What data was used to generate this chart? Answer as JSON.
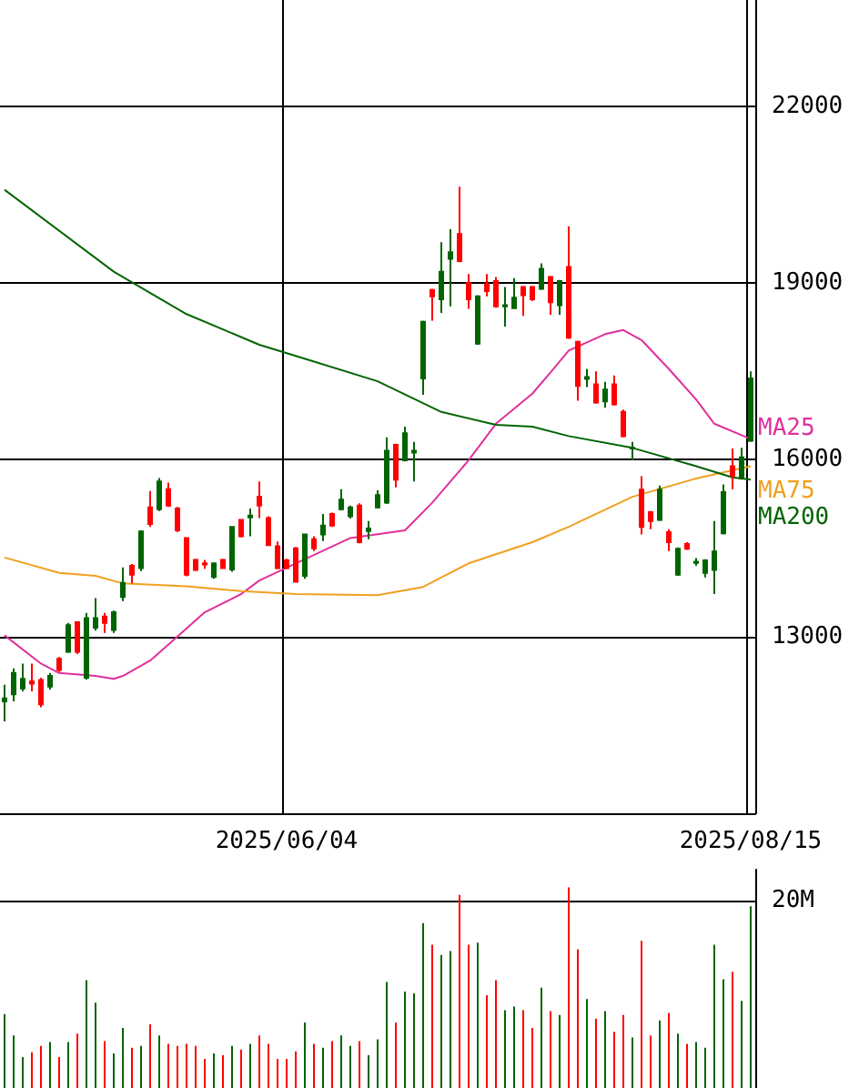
{
  "chart_data": [
    {
      "type": "candlestick",
      "categories": [
        null,
        null,
        null,
        null,
        null,
        null,
        null,
        null,
        null,
        null,
        null,
        null,
        null,
        null,
        null,
        null,
        null,
        null,
        null,
        null,
        null,
        null,
        null,
        null,
        null,
        null,
        null,
        null,
        null,
        null,
        null,
        "2025/06/04",
        null,
        null,
        null,
        null,
        null,
        null,
        null,
        null,
        null,
        null,
        null,
        null,
        null,
        null,
        null,
        null,
        null,
        null,
        null,
        null,
        null,
        null,
        null,
        null,
        null,
        null,
        null,
        null,
        null,
        null,
        null,
        null,
        null,
        null,
        null,
        null,
        null,
        null,
        null,
        null,
        null,
        null,
        null,
        null,
        null,
        null,
        null,
        null,
        null,
        null,
        "2025/08/15"
      ],
      "ohlc": [
        [
          11900,
          12180,
          11560,
          11950
        ],
        [
          12020,
          12460,
          11900,
          12380
        ],
        [
          12120,
          12540,
          12070,
          12280
        ],
        [
          12240,
          12540,
          12070,
          12200
        ],
        [
          12260,
          12300,
          11800,
          11850
        ],
        [
          12150,
          12380,
          12100,
          12330
        ],
        [
          12620,
          12650,
          12400,
          12430
        ],
        [
          12740,
          13230,
          12720,
          13190
        ],
        [
          13240,
          13260,
          12700,
          12740
        ],
        [
          12300,
          13400,
          12270,
          13310
        ],
        [
          13150,
          13650,
          13100,
          13310
        ],
        [
          13340,
          13400,
          13060,
          13230
        ],
        [
          13110,
          13440,
          13060,
          13410
        ],
        [
          13670,
          14170,
          13600,
          13910
        ],
        [
          14200,
          14230,
          13900,
          14050
        ],
        [
          14160,
          14800,
          14110,
          14780
        ],
        [
          15190,
          15470,
          14860,
          14910
        ],
        [
          15160,
          15690,
          15130,
          15630
        ],
        [
          15500,
          15610,
          15200,
          15220
        ],
        [
          15170,
          15200,
          14770,
          14800
        ],
        [
          14670,
          14680,
          14020,
          14050
        ],
        [
          14300,
          14320,
          14110,
          14130
        ],
        [
          14240,
          14300,
          14150,
          14220
        ],
        [
          14010,
          14250,
          13980,
          14240
        ],
        [
          14300,
          14320,
          14150,
          14160
        ],
        [
          14135,
          14870,
          14100,
          14860
        ],
        [
          14980,
          14990,
          14680,
          14700
        ],
        [
          15020,
          15170,
          14700,
          15050
        ],
        [
          15370,
          15630,
          15010,
          15220
        ],
        [
          15010,
          15040,
          14540,
          14550
        ],
        [
          14530,
          14610,
          14140,
          14160
        ],
        [
          14290,
          14320,
          14140,
          14160
        ],
        [
          14495,
          14520,
          13920,
          13930
        ],
        [
          14030,
          14740,
          13980,
          14730
        ],
        [
          14650,
          14700,
          14450,
          14495
        ],
        [
          14730,
          15080,
          14620,
          14880
        ],
        [
          15080,
          15100,
          14860,
          14880
        ],
        [
          15160,
          15500,
          15140,
          15320
        ],
        [
          15040,
          15220,
          15000,
          15190
        ],
        [
          15220,
          15260,
          14580,
          14600
        ],
        [
          14790,
          14960,
          14650,
          14830
        ],
        [
          15190,
          15480,
          15170,
          15400
        ],
        [
          15270,
          16380,
          15250,
          16150
        ],
        [
          16250,
          16270,
          15530,
          15660
        ],
        [
          15990,
          16560,
          15970,
          16450
        ],
        [
          16120,
          16300,
          15630,
          16150
        ],
        [
          17380,
          18360,
          17100,
          18340
        ],
        [
          18880,
          18900,
          18360,
          18770
        ],
        [
          18720,
          19690,
          18490,
          19190
        ],
        [
          19410,
          19910,
          18600,
          19520
        ],
        [
          19830,
          20630,
          19350,
          19370
        ],
        [
          19000,
          19150,
          18560,
          18720
        ],
        [
          17970,
          18790,
          17950,
          18770
        ],
        [
          18980,
          19150,
          18770,
          18860
        ],
        [
          19030,
          19100,
          18580,
          18600
        ],
        [
          18600,
          18930,
          18260,
          18620
        ],
        [
          18570,
          19080,
          18560,
          18750
        ],
        [
          18930,
          18950,
          18440,
          18790
        ],
        [
          18930,
          18950,
          18690,
          18720
        ],
        [
          18900,
          19330,
          18880,
          19240
        ],
        [
          19100,
          19120,
          18460,
          18670
        ],
        [
          18620,
          19050,
          18460,
          19030
        ],
        [
          19270,
          19960,
          18050,
          18070
        ],
        [
          18000,
          18020,
          17000,
          17250
        ],
        [
          17370,
          17540,
          17230,
          17400
        ],
        [
          17280,
          17500,
          16950,
          16970
        ],
        [
          16990,
          17320,
          16880,
          17190
        ],
        [
          17280,
          17430,
          16920,
          16940
        ],
        [
          16810,
          16850,
          16380,
          16400
        ],
        [
          16190,
          16300,
          15990,
          16200
        ],
        [
          15490,
          15720,
          14730,
          14860
        ],
        [
          15110,
          15130,
          14820,
          14960
        ],
        [
          14980,
          15560,
          14960,
          15490
        ],
        [
          14770,
          14820,
          14450,
          14600
        ],
        [
          14050,
          14510,
          14030,
          14490
        ],
        [
          14570,
          14600,
          14470,
          14490
        ],
        [
          14250,
          14330,
          14200,
          14270
        ],
        [
          14080,
          14310,
          14000,
          14290
        ],
        [
          14130,
          14960,
          13720,
          14440
        ],
        [
          14750,
          15580,
          14730,
          15450
        ],
        [
          15890,
          16190,
          15500,
          15730
        ],
        [
          15680,
          16200,
          15660,
          16040
        ],
        [
          16320,
          17500,
          16300,
          17380
        ]
      ],
      "colors": [
        "#006400",
        "#006400",
        "#006400",
        "#ff0000",
        "#ff0000",
        "#006400",
        "#ff0000",
        "#006400",
        "#ff0000",
        "#006400",
        "#006400",
        "#ff0000",
        "#006400",
        "#006400",
        "#ff0000",
        "#006400",
        "#ff0000",
        "#006400",
        "#ff0000",
        "#ff0000",
        "#ff0000",
        "#ff0000",
        "#ff0000",
        "#006400",
        "#ff0000",
        "#006400",
        "#ff0000",
        "#006400",
        "#ff0000",
        "#ff0000",
        "#ff0000",
        "#ff0000",
        "#ff0000",
        "#006400",
        "#ff0000",
        "#006400",
        "#ff0000",
        "#006400",
        "#006400",
        "#ff0000",
        "#006400",
        "#006400",
        "#006400",
        "#ff0000",
        "#006400",
        "#006400",
        "#006400",
        "#ff0000",
        "#006400",
        "#006400",
        "#ff0000",
        "#ff0000",
        "#006400",
        "#ff0000",
        "#ff0000",
        "#006400",
        "#006400",
        "#ff0000",
        "#ff0000",
        "#006400",
        "#ff0000",
        "#006400",
        "#ff0000",
        "#ff0000",
        "#006400",
        "#ff0000",
        "#006400",
        "#ff0000",
        "#ff0000",
        "#006400",
        "#ff0000",
        "#ff0000",
        "#006400",
        "#ff0000",
        "#006400",
        "#ff0000",
        "#006400",
        "#006400",
        "#006400",
        "#006400",
        "#ff0000",
        "#006400",
        "#006400"
      ],
      "series": [
        {
          "type": "line",
          "name": "MA25",
          "color": "#e0309a",
          "values": [
            13020,
            null,
            null,
            null,
            12540,
            null,
            12380,
            null,
            null,
            null,
            12330,
            null,
            12280,
            12330,
            null,
            null,
            12590,
            null,
            null,
            13000,
            null,
            null,
            13410,
            null,
            null,
            null,
            13720,
            null,
            13950,
            null,
            null,
            null,
            14240,
            null,
            null,
            null,
            null,
            null,
            14670,
            null,
            null,
            null,
            null,
            null,
            14800,
            null,
            null,
            15270,
            null,
            null,
            null,
            15990,
            null,
            null,
            16610,
            null,
            null,
            null,
            17120,
            null,
            17480,
            null,
            17850,
            null,
            null,
            null,
            18130,
            null,
            18200,
            null,
            18030,
            null,
            null,
            17540,
            null,
            null,
            17020,
            null,
            16610,
            null,
            null,
            null,
            16350
          ]
        },
        {
          "type": "line",
          "name": "MA75",
          "color": "#f0a020",
          "values": [
            14340,
            null,
            null,
            null,
            null,
            null,
            14080,
            null,
            null,
            null,
            14030,
            null,
            null,
            13900,
            null,
            null,
            null,
            null,
            null,
            null,
            13850,
            null,
            null,
            null,
            null,
            null,
            13770,
            null,
            null,
            null,
            null,
            null,
            13720,
            null,
            null,
            null,
            null,
            null,
            null,
            null,
            null,
            13700,
            null,
            null,
            null,
            null,
            13840,
            null,
            null,
            null,
            null,
            14240,
            null,
            null,
            null,
            null,
            null,
            null,
            14600,
            null,
            null,
            null,
            14860,
            null,
            null,
            null,
            null,
            null,
            null,
            15370,
            null,
            null,
            null,
            null,
            null,
            null,
            15680,
            null,
            null,
            null,
            null,
            null,
            15890
          ]
        },
        {
          "type": "line",
          "name": "MA200",
          "color": "#006400",
          "values": [
            20580,
            null,
            null,
            null,
            null,
            null,
            null,
            null,
            null,
            null,
            null,
            null,
            19190,
            null,
            null,
            null,
            null,
            null,
            null,
            null,
            18470,
            null,
            null,
            null,
            null,
            null,
            null,
            null,
            17950,
            null,
            null,
            null,
            17760,
            null,
            null,
            null,
            null,
            null,
            null,
            null,
            null,
            17330,
            null,
            null,
            null,
            null,
            null,
            null,
            16810,
            null,
            null,
            null,
            null,
            null,
            16590,
            null,
            null,
            null,
            16560,
            null,
            null,
            null,
            16400,
            null,
            null,
            null,
            null,
            null,
            null,
            16200,
            null,
            null,
            null,
            null,
            null,
            null,
            15890,
            null,
            null,
            null,
            15700,
            null,
            15660
          ]
        }
      ],
      "ylim": [
        10000,
        23800
      ],
      "yticks": [
        13000,
        16000,
        19000,
        22000
      ],
      "grid": true
    },
    {
      "type": "bar",
      "categories": [
        null,
        null,
        null,
        null,
        null,
        null,
        null,
        null,
        null,
        null,
        null,
        null,
        null,
        null,
        null,
        null,
        null,
        null,
        null,
        null,
        null,
        null,
        null,
        null,
        null,
        null,
        null,
        null,
        null,
        null,
        null,
        "2025/06/04",
        null,
        null,
        null,
        null,
        null,
        null,
        null,
        null,
        null,
        null,
        null,
        null,
        null,
        null,
        null,
        null,
        null,
        null,
        null,
        null,
        null,
        null,
        null,
        null,
        null,
        null,
        null,
        null,
        null,
        null,
        null,
        null,
        null,
        null,
        null,
        null,
        null,
        null,
        null,
        null,
        null,
        null,
        null,
        null,
        null,
        null,
        null,
        null,
        null,
        null,
        "2025/08/15"
      ],
      "values": [
        7.9,
        5.6,
        3.3,
        3.8,
        4.5,
        4.9,
        3.3,
        4.9,
        5.8,
        11.5,
        9.1,
        5.0,
        3.7,
        6.4,
        4.3,
        4.5,
        6.8,
        5.6,
        4.7,
        4.5,
        4.7,
        4.5,
        3.1,
        3.7,
        3.5,
        4.5,
        4.1,
        4.7,
        5.6,
        4.7,
        3.1,
        3.1,
        3.9,
        7.0,
        4.7,
        4.3,
        5.0,
        5.6,
        4.5,
        5.0,
        3.5,
        5.2,
        11.3,
        7.0,
        10.3,
        10.1,
        17.6,
        15.3,
        14.2,
        14.6,
        20.6,
        15.3,
        15.5,
        9.9,
        11.5,
        8.3,
        8.7,
        8.3,
        6.4,
        10.7,
        8.2,
        7.8,
        21.4,
        14.8,
        9.5,
        7.4,
        8.2,
        6.0,
        7.8,
        5.4,
        15.7,
        5.6,
        7.2,
        8.0,
        5.8,
        4.7,
        4.9,
        4.3,
        15.3,
        11.6,
        12.4,
        9.3,
        19.4
      ],
      "colors": [
        "#006400",
        "#006400",
        "#006400",
        "#ff0000",
        "#ff0000",
        "#006400",
        "#ff0000",
        "#006400",
        "#ff0000",
        "#006400",
        "#006400",
        "#ff0000",
        "#006400",
        "#006400",
        "#ff0000",
        "#006400",
        "#ff0000",
        "#006400",
        "#ff0000",
        "#ff0000",
        "#ff0000",
        "#ff0000",
        "#ff0000",
        "#006400",
        "#ff0000",
        "#006400",
        "#ff0000",
        "#006400",
        "#ff0000",
        "#ff0000",
        "#ff0000",
        "#ff0000",
        "#ff0000",
        "#006400",
        "#ff0000",
        "#006400",
        "#ff0000",
        "#006400",
        "#006400",
        "#ff0000",
        "#006400",
        "#006400",
        "#006400",
        "#ff0000",
        "#006400",
        "#006400",
        "#006400",
        "#ff0000",
        "#006400",
        "#006400",
        "#ff0000",
        "#ff0000",
        "#006400",
        "#ff0000",
        "#ff0000",
        "#006400",
        "#006400",
        "#ff0000",
        "#ff0000",
        "#006400",
        "#ff0000",
        "#006400",
        "#ff0000",
        "#ff0000",
        "#006400",
        "#ff0000",
        "#006400",
        "#ff0000",
        "#ff0000",
        "#006400",
        "#ff0000",
        "#ff0000",
        "#006400",
        "#ff0000",
        "#006400",
        "#ff0000",
        "#006400",
        "#006400",
        "#006400",
        "#006400",
        "#ff0000",
        "#006400",
        "#006400"
      ],
      "ylim": [
        0,
        23.3
      ],
      "yticks": [
        {
          "value": 20,
          "label": "20M"
        }
      ],
      "grid": "y",
      "tick_labels": "y"
    }
  ]
}
